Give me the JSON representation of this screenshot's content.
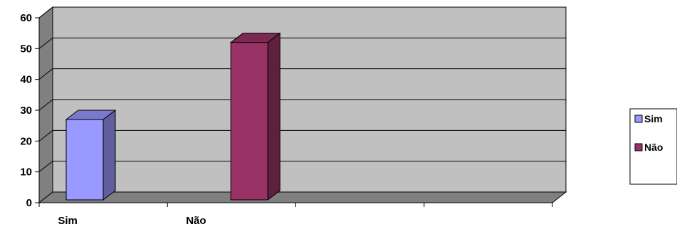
{
  "chart_data": {
    "type": "bar",
    "style": "3d-column",
    "categories": [
      "Sim",
      "Não",
      "",
      ""
    ],
    "series": [
      {
        "name": "Sim",
        "color": "#9999FF",
        "values": [
          27,
          null,
          null,
          null
        ]
      },
      {
        "name": "Não",
        "color": "#993366",
        "values": [
          null,
          52,
          null,
          null
        ]
      }
    ],
    "ylim": [
      0,
      60
    ],
    "yticks": [
      0,
      10,
      20,
      30,
      40,
      50,
      60
    ],
    "grid": true,
    "legend_position": "right",
    "wall_color": "#C0C0C0",
    "floor_color": "#808080"
  }
}
